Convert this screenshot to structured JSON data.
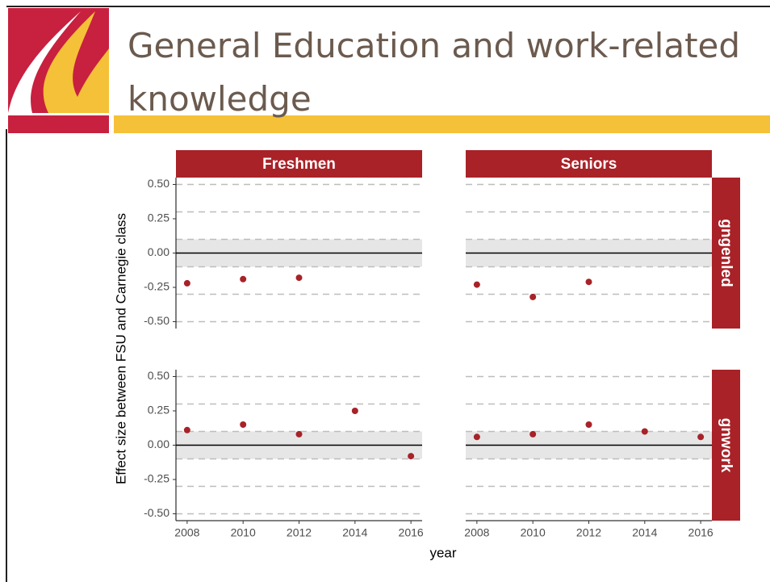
{
  "title": "General Education and work-related knowledge",
  "chart_data": {
    "type": "scatter",
    "x_label": "year",
    "y_label": "Effect size between FSU and Carnegie class",
    "columns": [
      "Freshmen",
      "Seniors"
    ],
    "rows": [
      "gngenled",
      "gnwork"
    ],
    "color": "#a82228",
    "xlim": [
      2007.6,
      2016.4
    ],
    "ylim": [
      -0.55,
      0.55
    ],
    "xticks": [
      2008,
      2010,
      2012,
      2014,
      2016
    ],
    "yticks": [
      {
        "value": 0.5,
        "label": "0.50"
      },
      {
        "value": 0.25,
        "label": "0.25"
      },
      {
        "value": 0,
        "label": "0.00"
      },
      {
        "value": -0.25,
        "label": "-0.25"
      },
      {
        "value": -0.5,
        "label": "-0.50"
      }
    ],
    "reference_lines": [
      -0.5,
      -0.3,
      -0.1,
      0.1,
      0.3,
      0.5
    ],
    "zero_line": 0,
    "band": [
      -0.1,
      0.1
    ],
    "panels": [
      {
        "x": [
          2008,
          2010,
          2012
        ],
        "values": [
          -0.22,
          -0.19,
          -0.18
        ]
      },
      {
        "x": [
          2008,
          2010,
          2012
        ],
        "values": [
          -0.23,
          -0.32,
          -0.21
        ]
      },
      {
        "x": [
          2008,
          2010,
          2012,
          2014,
          2016
        ],
        "values": [
          0.11,
          0.15,
          0.08,
          0.25,
          -0.08
        ]
      },
      {
        "x": [
          2008,
          2010,
          2012,
          2014,
          2016
        ],
        "values": [
          0.06,
          0.08,
          0.15,
          0.1,
          0.06
        ]
      }
    ]
  }
}
